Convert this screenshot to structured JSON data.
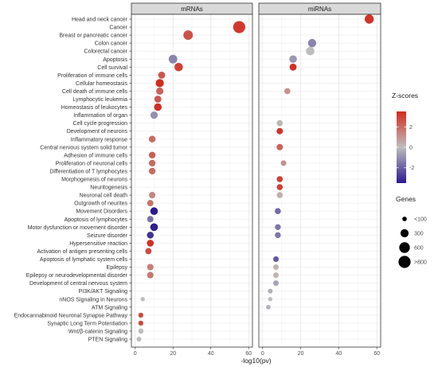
{
  "chart_data": {
    "type": "scatter",
    "facets": [
      {
        "title": "mRNAs",
        "xlim": [
          -2,
          62
        ]
      },
      {
        "title": "miRNAs",
        "xlim": [
          -2,
          62
        ]
      }
    ],
    "xlabel": "-log10(pv)",
    "x_ticks": [
      "0",
      "20",
      "40",
      "60"
    ],
    "categories": [
      "Head and neck cancer",
      "Cancer",
      "Breast or pancreatic cancer",
      "Colon cancer",
      "Colorectal cancer",
      "Apoptosis",
      "Cell survival",
      "Proliferation of immune cells",
      "Cellular homeostasis",
      "Cell death of immune cells",
      "Lymphocytic leukemia",
      "Homeostasis of leukocytes",
      "Inflammation of organ",
      "Cell cycle progression",
      "Development of neurons",
      "Inflammatory response",
      "Central nervous system solid tumor",
      "Adhesion of immune cells",
      "Proliferation of neuronal cells",
      "Differentiation of T lymphocytes",
      "Morphogenesis of neurons",
      "Neuritogenesis",
      "Neuronal cell death",
      "Outgrowth of neurites",
      "Movement Disorders",
      "Apoptosis of lymphocytes",
      "Motor dysfunction or movement disorder",
      "Seizure disorder",
      "Hypersensitive reaction",
      "Activation of antigen presenting cells",
      "Apoptosis of lymphatic system cells",
      "Epilepsy",
      "Epilepsy or neurodevelopmental disorder",
      "Development of central nervous system",
      "PI3K/AKT Signaling",
      "nNOS Signaling in Neurons",
      "ATM Signaling",
      "Endocannabinoid Neuronal Synapse Pathway",
      "Synaptic Long Term Potentiation",
      "Wnt/β-catenin Signaling",
      "PTEN Signaling"
    ],
    "series": [
      {
        "facet": "mRNAs",
        "points": [
          {
            "category": "Cancer",
            "x": 55,
            "z": 3.2,
            "genes": 850
          },
          {
            "category": "Breast or pancreatic cancer",
            "x": 28,
            "z": 2.6,
            "genes": 450
          },
          {
            "category": "Apoptosis",
            "x": 20,
            "z": -1.2,
            "genes": 350
          },
          {
            "category": "Cell survival",
            "x": 23,
            "z": 3.0,
            "genes": 330
          },
          {
            "category": "Proliferation of immune cells",
            "x": 14,
            "z": 2.5,
            "genes": 200
          },
          {
            "category": "Cellular homeostasis",
            "x": 13,
            "z": 3.5,
            "genes": 300
          },
          {
            "category": "Cell death of immune cells",
            "x": 13,
            "z": 2.2,
            "genes": 220
          },
          {
            "category": "Lymphocytic leukemia",
            "x": 12,
            "z": 2.4,
            "genes": 200
          },
          {
            "category": "Homeostasis of leukocytes",
            "x": 12,
            "z": 3.4,
            "genes": 250
          },
          {
            "category": "Inflammation of organ",
            "x": 10,
            "z": -1.0,
            "genes": 220
          },
          {
            "category": "Inflammatory response",
            "x": 9,
            "z": 2.0,
            "genes": 180
          },
          {
            "category": "Adhesion of immune cells",
            "x": 9,
            "z": 2.3,
            "genes": 170
          },
          {
            "category": "Proliferation of neuronal cells",
            "x": 9,
            "z": 2.0,
            "genes": 170
          },
          {
            "category": "Differentiation of T lymphocytes",
            "x": 9,
            "z": 2.0,
            "genes": 170
          },
          {
            "category": "Neuronal cell death",
            "x": 9,
            "z": 1.3,
            "genes": 160
          },
          {
            "category": "Outgrowth of neurites",
            "x": 8,
            "z": 1.8,
            "genes": 150
          },
          {
            "category": "Movement Disorders",
            "x": 10,
            "z": -3.5,
            "genes": 250
          },
          {
            "category": "Apoptosis of lymphocytes",
            "x": 8,
            "z": -1.6,
            "genes": 150
          },
          {
            "category": "Motor dysfunction or movement disorder",
            "x": 10,
            "z": -3.4,
            "genes": 260
          },
          {
            "category": "Seizure disorder",
            "x": 8,
            "z": -3.0,
            "genes": 180
          },
          {
            "category": "Hypersensitive reaction",
            "x": 8,
            "z": 3.4,
            "genes": 190
          },
          {
            "category": "Activation of antigen presenting cells",
            "x": 7,
            "z": 2.8,
            "genes": 140
          },
          {
            "category": "Epilepsy",
            "x": 8,
            "z": 1.5,
            "genes": 160
          },
          {
            "category": "Epilepsy or neurodevelopmental disorder",
            "x": 8,
            "z": 1.7,
            "genes": 160
          },
          {
            "category": "nNOS Signaling in Neurons",
            "x": 4,
            "z": 0.0,
            "genes": 40
          },
          {
            "category": "Endocannabinoid Neuronal Synapse Pathway",
            "x": 3,
            "z": 2.8,
            "genes": 70
          },
          {
            "category": "Synaptic Long Term Potentiation",
            "x": 3,
            "z": 2.8,
            "genes": 70
          },
          {
            "category": "Wnt/β-catenin Signaling",
            "x": 3,
            "z": 0.0,
            "genes": 80
          },
          {
            "category": "PTEN Signaling",
            "x": 2,
            "z": 0.0,
            "genes": 60
          }
        ]
      },
      {
        "facet": "miRNAs",
        "points": [
          {
            "category": "Head and neck cancer",
            "x": 56,
            "z": 3.3,
            "genes": 400
          },
          {
            "category": "Colon cancer",
            "x": 26,
            "z": -1.2,
            "genes": 320
          },
          {
            "category": "Colorectal cancer",
            "x": 25,
            "z": 0.0,
            "genes": 330
          },
          {
            "category": "Apoptosis",
            "x": 16,
            "z": -0.8,
            "genes": 250
          },
          {
            "category": "Cell survival",
            "x": 16,
            "z": 3.4,
            "genes": 200
          },
          {
            "category": "Cell death of immune cells",
            "x": 13,
            "z": 1.0,
            "genes": 130
          },
          {
            "category": "Cell cycle progression",
            "x": 9,
            "z": 0.2,
            "genes": 130
          },
          {
            "category": "Development of neurons",
            "x": 9,
            "z": 3.3,
            "genes": 150
          },
          {
            "category": "Central nervous system solid tumor",
            "x": 9,
            "z": 2.2,
            "genes": 150
          },
          {
            "category": "Proliferation of neuronal cells",
            "x": 11,
            "z": 1.0,
            "genes": 100
          },
          {
            "category": "Morphogenesis of neurons",
            "x": 9,
            "z": 3.0,
            "genes": 130
          },
          {
            "category": "Neuritogenesis",
            "x": 9,
            "z": 3.0,
            "genes": 130
          },
          {
            "category": "Neuronal cell death",
            "x": 9,
            "z": 0.3,
            "genes": 130
          },
          {
            "category": "Movement Disorders",
            "x": 8,
            "z": -1.8,
            "genes": 130
          },
          {
            "category": "Motor dysfunction or movement disorder",
            "x": 8,
            "z": -1.5,
            "genes": 120
          },
          {
            "category": "Seizure disorder",
            "x": 8,
            "z": -1.5,
            "genes": 120
          },
          {
            "category": "Apoptosis of lymphatic system cells",
            "x": 7,
            "z": -2.2,
            "genes": 100
          },
          {
            "category": "Epilepsy",
            "x": 7,
            "z": 0.2,
            "genes": 100
          },
          {
            "category": "Epilepsy or neurodevelopmental disorder",
            "x": 7,
            "z": 0.2,
            "genes": 100
          },
          {
            "category": "Development of central nervous system",
            "x": 7,
            "z": -0.5,
            "genes": 100
          },
          {
            "category": "PI3K/AKT Signaling",
            "x": 4,
            "z": -0.3,
            "genes": 60
          },
          {
            "category": "nNOS Signaling in Neurons",
            "x": 4,
            "z": 0.0,
            "genes": 40
          },
          {
            "category": "ATM Signaling",
            "x": 3,
            "z": -0.3,
            "genes": 50
          }
        ]
      }
    ],
    "color_legend": {
      "title": "Z-scores",
      "ticks": [
        "2",
        "0",
        "-2"
      ],
      "range": [
        -3.5,
        3.5
      ],
      "colors": {
        "low": "#2c1a8f",
        "mid": "#bdbdbd",
        "high": "#d32b1f"
      }
    },
    "size_legend": {
      "title": "Genes",
      "entries": [
        {
          "label": "<100",
          "genes": 50
        },
        {
          "label": "300",
          "genes": 300
        },
        {
          "label": "600",
          "genes": 600
        },
        {
          "label": ">800",
          "genes": 850
        }
      ]
    },
    "grid": true,
    "legend_placement": "right"
  }
}
